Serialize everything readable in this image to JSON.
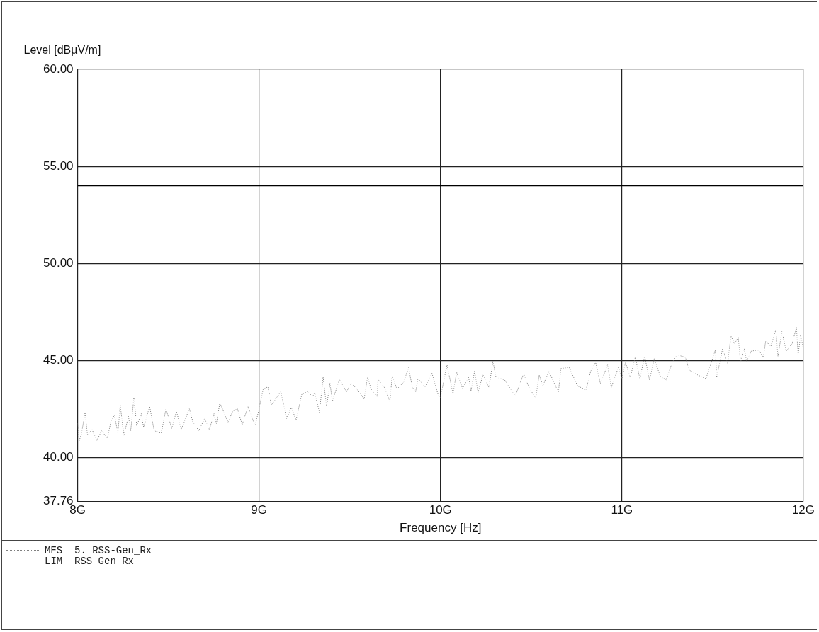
{
  "chart_data": {
    "type": "line",
    "ylabel": "Level [dBµV/m]",
    "xlabel": "Frequency [Hz]",
    "xlim": [
      8,
      12
    ],
    "xticks": [
      {
        "value": 8,
        "label": "8G"
      },
      {
        "value": 9,
        "label": "9G"
      },
      {
        "value": 10,
        "label": "10G"
      },
      {
        "value": 11,
        "label": "11G"
      },
      {
        "value": 12,
        "label": "12G"
      }
    ],
    "ylim": [
      37.76,
      60
    ],
    "yticks": [
      {
        "value": 37.76,
        "label": "37.76"
      },
      {
        "value": 40,
        "label": "40.00"
      },
      {
        "value": 45,
        "label": "45.00"
      },
      {
        "value": 50,
        "label": "50.00"
      },
      {
        "value": 55,
        "label": "55.00"
      },
      {
        "value": 60,
        "label": "60.00"
      }
    ],
    "grid": true,
    "legend": "bottom left",
    "marker": "none",
    "series": [
      {
        "name": "MES  5. RSS-Gen_Rx",
        "color": "#808080",
        "line_style": "dotted",
        "x": [
          8.0,
          8.009,
          8.022,
          8.041,
          8.054,
          8.08,
          8.106,
          8.132,
          8.164,
          8.183,
          8.203,
          8.222,
          8.235,
          8.255,
          8.28,
          8.293,
          8.31,
          8.326,
          8.351,
          8.364,
          8.397,
          8.422,
          8.461,
          8.487,
          8.519,
          8.545,
          8.571,
          8.616,
          8.636,
          8.668,
          8.7,
          8.726,
          8.752,
          8.765,
          8.784,
          8.829,
          8.855,
          8.881,
          8.907,
          8.939,
          8.978,
          8.997,
          9.023,
          9.049,
          9.068,
          9.101,
          9.12,
          9.152,
          9.178,
          9.204,
          9.236,
          9.269,
          9.295,
          9.307,
          9.333,
          9.353,
          9.372,
          9.391,
          9.404,
          9.443,
          9.482,
          9.508,
          9.54,
          9.579,
          9.598,
          9.618,
          9.65,
          9.656,
          9.689,
          9.721,
          9.734,
          9.76,
          9.798,
          9.824,
          9.844,
          9.863,
          9.876,
          9.915,
          9.953,
          9.986,
          10.0,
          10.036,
          10.069,
          10.089,
          10.122,
          10.155,
          10.168,
          10.188,
          10.207,
          10.234,
          10.267,
          10.289,
          10.306,
          10.353,
          10.412,
          10.458,
          10.485,
          10.524,
          10.544,
          10.564,
          10.597,
          10.65,
          10.663,
          10.709,
          10.756,
          10.802,
          10.828,
          10.855,
          10.881,
          10.921,
          10.941,
          10.98,
          11.0,
          11.02,
          11.046,
          11.073,
          11.099,
          11.125,
          11.152,
          11.178,
          11.211,
          11.244,
          11.277,
          11.304,
          11.35,
          11.37,
          11.416,
          11.463,
          11.515,
          11.522,
          11.555,
          11.582,
          11.601,
          11.621,
          11.641,
          11.654,
          11.674,
          11.687,
          11.713,
          11.753,
          11.78,
          11.793,
          11.819,
          11.848,
          11.86,
          11.882,
          11.905,
          11.938,
          11.962,
          11.971,
          11.985,
          11.999
        ],
        "values": [
          41.76,
          40.88,
          41.26,
          42.33,
          41.2,
          41.45,
          40.88,
          41.39,
          41.01,
          41.83,
          42.2,
          41.26,
          42.71,
          41.13,
          42.14,
          41.39,
          43.09,
          41.64,
          42.27,
          41.57,
          42.64,
          41.39,
          41.26,
          42.52,
          41.51,
          42.39,
          41.45,
          42.52,
          41.83,
          41.39,
          42.02,
          41.45,
          42.27,
          41.76,
          42.83,
          41.83,
          42.39,
          42.52,
          41.7,
          42.64,
          41.64,
          42.39,
          43.53,
          43.65,
          42.71,
          43.15,
          43.4,
          42.02,
          42.58,
          41.95,
          43.27,
          43.4,
          43.15,
          43.34,
          42.33,
          44.16,
          42.64,
          43.84,
          42.9,
          44.03,
          43.4,
          43.84,
          43.53,
          43.02,
          44.16,
          43.53,
          43.15,
          44.03,
          43.65,
          42.9,
          44.22,
          43.53,
          43.9,
          44.66,
          43.65,
          43.4,
          44.09,
          43.65,
          44.35,
          43.27,
          43.11,
          44.78,
          43.3,
          44.4,
          43.56,
          44.14,
          43.43,
          44.46,
          43.37,
          44.27,
          43.62,
          44.97,
          44.14,
          44.01,
          43.17,
          44.33,
          43.69,
          43.05,
          44.27,
          43.69,
          44.46,
          43.37,
          44.59,
          44.65,
          43.69,
          43.5,
          44.46,
          44.91,
          43.82,
          44.78,
          43.62,
          44.65,
          44.07,
          44.91,
          44.14,
          45.17,
          44.07,
          45.23,
          44.01,
          45.1,
          44.2,
          44.01,
          44.91,
          45.3,
          45.17,
          44.52,
          44.27,
          44.07,
          45.55,
          44.14,
          45.62,
          44.85,
          46.26,
          45.87,
          46.2,
          44.91,
          45.62,
          44.97,
          45.49,
          45.55,
          45.17,
          46.07,
          45.68,
          46.58,
          45.23,
          46.52,
          45.49,
          45.87,
          46.71,
          45.3,
          46.32,
          45.68
        ]
      },
      {
        "name": "LIM  RSS_Gen_Rx",
        "color": "#000000",
        "line_style": "solid",
        "x": [
          8,
          12
        ],
        "values": [
          54,
          54
        ]
      }
    ]
  }
}
